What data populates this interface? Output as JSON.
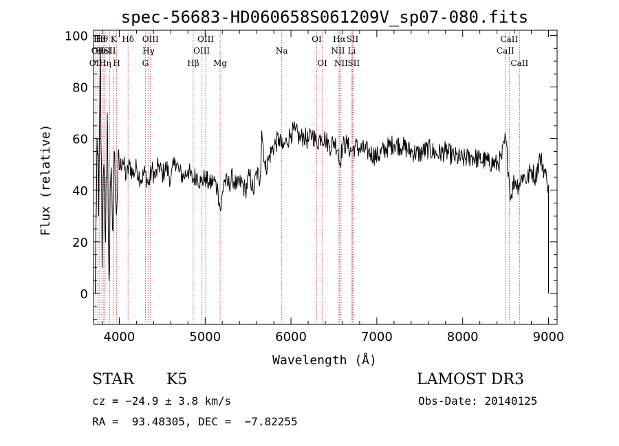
{
  "chart_data": {
    "type": "line",
    "title": "spec-56683-HD060658S061209V_sp07-080.fits",
    "xlabel": "Wavelength (Å)",
    "ylabel": "Flux (relative)",
    "xlim": [
      3700,
      9100
    ],
    "ylim": [
      -12,
      102
    ],
    "xticks": [
      4000,
      5000,
      6000,
      7000,
      8000,
      9000
    ],
    "yticks": [
      0,
      20,
      40,
      60,
      80,
      100
    ],
    "grid": false,
    "series": [
      {
        "x": [
          3720,
          3740,
          3760,
          3780,
          3800,
          3820,
          3840,
          3860,
          3880,
          3900,
          3920,
          3940,
          3960,
          3980,
          4000,
          4040,
          4080,
          4120,
          4160,
          4200,
          4250,
          4300,
          4340,
          4380,
          4420,
          4460,
          4500,
          4550,
          4600,
          4650,
          4700,
          4750,
          4800,
          4850,
          4900,
          4950,
          5000,
          5050,
          5100,
          5150,
          5180,
          5220,
          5270,
          5320,
          5370,
          5420,
          5470,
          5520,
          5560,
          5600,
          5640,
          5660,
          5700,
          5740,
          5780,
          5820,
          5860,
          5900,
          5950,
          6000,
          6050,
          6100,
          6150,
          6200,
          6250,
          6300,
          6350,
          6400,
          6450,
          6500,
          6550,
          6563,
          6600,
          6650,
          6700,
          6750,
          6800,
          6900,
          7000,
          7100,
          7200,
          7300,
          7400,
          7500,
          7600,
          7700,
          7800,
          7900,
          8000,
          8100,
          8200,
          8300,
          8400,
          8450,
          8500,
          8540,
          8560,
          8600,
          8650,
          8700,
          8750,
          8800,
          8850,
          8900,
          8950,
          8980,
          9000
        ],
        "y": [
          0,
          60,
          30,
          95,
          10,
          50,
          20,
          70,
          5,
          45,
          25,
          55,
          35,
          40,
          48,
          52,
          45,
          50,
          46,
          49,
          44,
          47,
          42,
          48,
          45,
          50,
          46,
          49,
          44,
          52,
          47,
          45,
          48,
          44,
          46,
          43,
          45,
          42,
          44,
          40,
          32,
          44,
          42,
          45,
          41,
          43,
          40,
          46,
          39,
          47,
          44,
          63,
          48,
          52,
          56,
          58,
          60,
          56,
          59,
          62,
          63,
          60,
          61,
          59,
          62,
          58,
          61,
          60,
          57,
          59,
          56,
          50,
          57,
          58,
          55,
          57,
          56,
          55,
          53,
          56,
          58,
          57,
          55,
          54,
          56,
          54,
          55,
          53,
          52,
          53,
          52,
          51,
          50,
          52,
          60,
          45,
          37,
          44,
          42,
          46,
          44,
          48,
          45,
          53,
          48,
          44,
          42
        ]
      }
    ]
  },
  "spectral_lines": [
    {
      "w": 3727,
      "row": 3,
      "label": "OII"
    },
    {
      "w": 3750,
      "row": 2,
      "label": "OII"
    },
    {
      "w": 3771,
      "row": 1,
      "label": "Hθ"
    },
    {
      "w": 3798,
      "row": 1,
      "label": "Hθ"
    },
    {
      "w": 3820,
      "row": 2,
      "label": "HeI"
    },
    {
      "w": 3835,
      "row": 3,
      "label": "Hη"
    },
    {
      "w": 3889,
      "row": 2,
      "label": "SII"
    },
    {
      "w": 3934,
      "row": 1,
      "label": "K"
    },
    {
      "w": 3969,
      "row": 3,
      "label": "H"
    },
    {
      "w": 4102,
      "row": 1,
      "label": "Hδ"
    },
    {
      "w": 4304,
      "row": 3,
      "label": "G"
    },
    {
      "w": 4341,
      "row": 2,
      "label": "Hγ"
    },
    {
      "w": 4363,
      "row": 1,
      "label": "OIII"
    },
    {
      "w": 4861,
      "row": 3,
      "label": "Hβ"
    },
    {
      "w": 4959,
      "row": 2,
      "label": "OIII"
    },
    {
      "w": 5007,
      "row": 1,
      "label": "OIII"
    },
    {
      "w": 5175,
      "row": 3,
      "label": "Mg"
    },
    {
      "w": 5893,
      "row": 2,
      "label": "Na"
    },
    {
      "w": 6300,
      "row": 1,
      "label": "OI"
    },
    {
      "w": 6364,
      "row": 3,
      "label": "OI"
    },
    {
      "w": 6548,
      "row": 2,
      "label": "NII"
    },
    {
      "w": 6563,
      "row": 1,
      "label": "Hα"
    },
    {
      "w": 6583,
      "row": 3,
      "label": "NII"
    },
    {
      "w": 6707,
      "row": 2,
      "label": "Li"
    },
    {
      "w": 6716,
      "row": 1,
      "label": "SII"
    },
    {
      "w": 6731,
      "row": 3,
      "label": "SII"
    },
    {
      "w": 8498,
      "row": 2,
      "label": "CaII"
    },
    {
      "w": 8542,
      "row": 1,
      "label": "CaII"
    },
    {
      "w": 8662,
      "row": 3,
      "label": "CaII"
    }
  ],
  "info": {
    "class_label": "STAR",
    "subclass": "K5",
    "survey": "LAMOST DR3",
    "redshift": "cz = −24.9 ± 3.8 km/s",
    "obs_date": "Obs-Date: 20140125",
    "coords": "RA =  93.48305, DEC =  −7.82255"
  },
  "colors": {
    "spectrum": "#000000",
    "lines": "#cc2222",
    "axes": "#000000"
  }
}
